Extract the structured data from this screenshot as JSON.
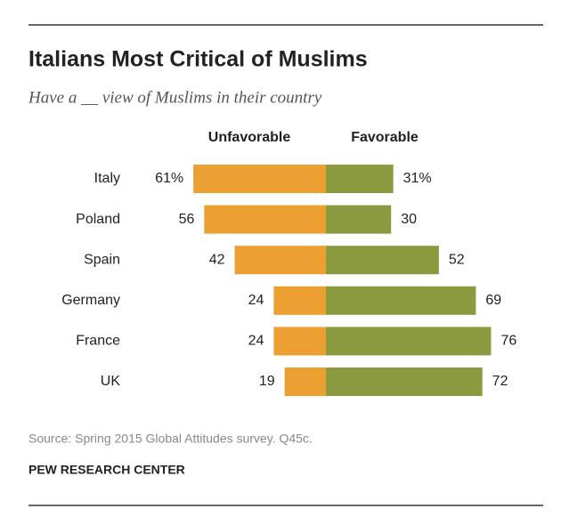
{
  "chart_data": {
    "type": "bar",
    "title": "Italians Most Critical of Muslims",
    "subtitle": "Have a __ view of Muslims in their country",
    "categories": [
      "Italy",
      "Poland",
      "Spain",
      "Germany",
      "France",
      "UK"
    ],
    "series": [
      {
        "name": "Unfavorable",
        "color": "#eba031",
        "values": [
          61,
          56,
          42,
          24,
          24,
          19
        ],
        "value_labels": [
          "61%",
          "56",
          "42",
          "24",
          "24",
          "19"
        ]
      },
      {
        "name": "Favorable",
        "color": "#8c9a3f",
        "values": [
          31,
          30,
          52,
          69,
          76,
          72
        ],
        "value_labels": [
          "31%",
          "30",
          "52",
          "69",
          "76",
          "72"
        ]
      }
    ],
    "source": "Source: Spring 2015 Global Attitudes survey. Q45c.",
    "note": "PEW RESEARCH CENTER"
  }
}
